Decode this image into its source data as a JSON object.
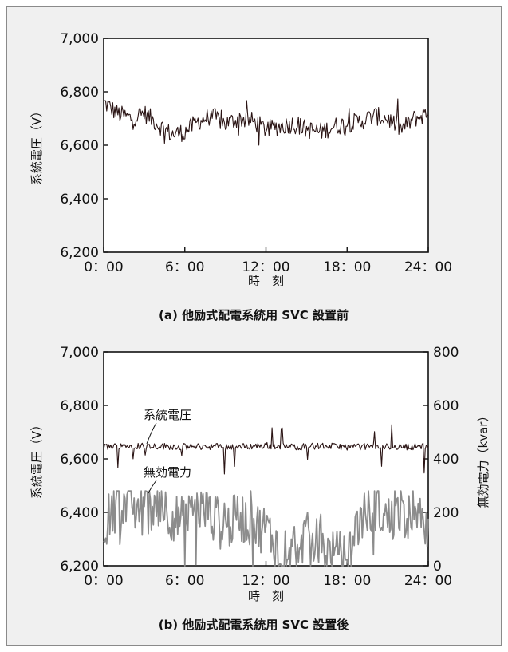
{
  "chart_data": [
    {
      "type": "line",
      "caption": "(a) 他励式配電系統用 SVC 設置前",
      "xlabel": "時　刻",
      "ylabel": "系統電圧（V）",
      "x_ticks": [
        "0：00",
        "6：00",
        "12：00",
        "18：00",
        "24：00"
      ],
      "xlim_hours": [
        0,
        24
      ],
      "y_ticks": [
        "7,000",
        "6,800",
        "6,600",
        "6,400",
        "6,200"
      ],
      "ylim": [
        6200,
        7000
      ],
      "grid": false,
      "series": [
        {
          "color": "#2a1414",
          "x_hours": [
            0,
            1,
            2,
            3,
            4,
            5,
            6,
            7,
            8,
            9,
            10,
            11,
            12,
            13,
            14,
            15,
            16,
            17,
            18,
            19,
            20,
            21,
            22,
            23,
            24
          ],
          "values": [
            6760,
            6720,
            6700,
            6720,
            6680,
            6640,
            6650,
            6690,
            6710,
            6680,
            6700,
            6690,
            6660,
            6670,
            6680,
            6660,
            6650,
            6670,
            6680,
            6690,
            6710,
            6700,
            6660,
            6700,
            6720
          ]
        }
      ]
    },
    {
      "type": "line",
      "caption": "(b) 他励式配電系統用 SVC 設置後",
      "xlabel": "時　刻",
      "ylabel": "系統電圧（V）",
      "y2label": "無効電力（kvar）",
      "x_ticks": [
        "0：00",
        "6：00",
        "12：00",
        "18：00",
        "24：00"
      ],
      "xlim_hours": [
        0,
        24
      ],
      "y_ticks": [
        "7,000",
        "6,800",
        "6,600",
        "6,400",
        "6,200"
      ],
      "ylim": [
        6200,
        7000
      ],
      "y2_ticks": [
        "800",
        "600",
        "400",
        "200",
        "0"
      ],
      "y2lim": [
        0,
        800
      ],
      "grid": false,
      "series": [
        {
          "name": "系統電圧",
          "axis": "left",
          "color": "#2a1414",
          "x_hours": [
            0,
            2,
            4,
            6,
            8,
            10,
            12,
            14,
            16,
            18,
            20,
            22,
            24
          ],
          "values": [
            6645,
            6650,
            6648,
            6645,
            6647,
            6645,
            6650,
            6645,
            6648,
            6645,
            6646,
            6645,
            6648
          ]
        },
        {
          "name": "無効電力",
          "axis": "right",
          "color": "#8c8c8c",
          "x_hours": [
            0,
            1,
            2,
            3,
            4,
            5,
            6,
            7,
            8,
            9,
            10,
            11,
            12,
            13,
            14,
            15,
            16,
            17,
            18,
            19,
            20,
            21,
            22,
            23,
            24
          ],
          "values": [
            150,
            230,
            220,
            200,
            240,
            190,
            160,
            220,
            180,
            140,
            190,
            150,
            140,
            60,
            80,
            110,
            70,
            40,
            30,
            180,
            230,
            170,
            210,
            150,
            190
          ]
        }
      ]
    }
  ]
}
